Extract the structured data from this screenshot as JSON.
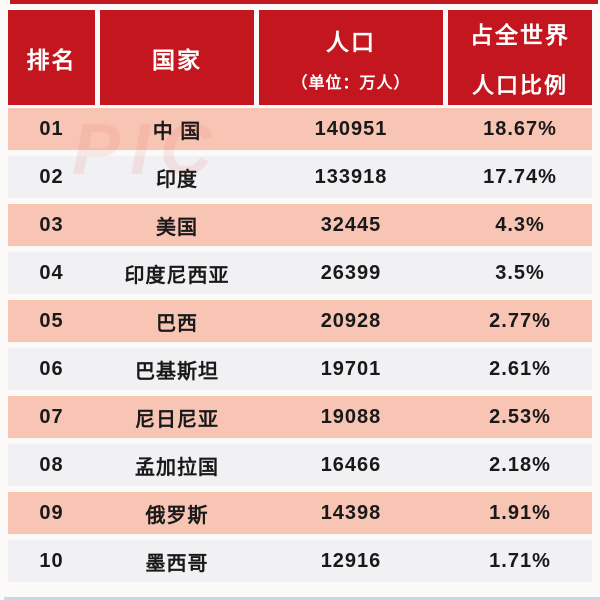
{
  "colors": {
    "page_bg": "#fbfaf8",
    "header_bg": "#c4161e",
    "header_text": "#ffffff",
    "row_pink": "#f8c5b5",
    "row_gray": "#f1f0f3",
    "body_text": "#191919",
    "bottom_line": "#b9d0e4"
  },
  "watermark": {
    "text": "PIC"
  },
  "table": {
    "columns": [
      {
        "key": "rank",
        "label": "排名",
        "sublabel": ""
      },
      {
        "key": "country",
        "label": "国家",
        "sublabel": ""
      },
      {
        "key": "population",
        "label": "人口",
        "sublabel": "（单位：万人）"
      },
      {
        "key": "share",
        "label": "占全世界",
        "sublabel": "人口比例"
      }
    ],
    "rows": [
      {
        "rank": "01",
        "country": "中 国",
        "population": "140951",
        "share": "18.67%"
      },
      {
        "rank": "02",
        "country": "印度",
        "population": "133918",
        "share": "17.74%"
      },
      {
        "rank": "03",
        "country": "美国",
        "population": "32445",
        "share": "4.3%"
      },
      {
        "rank": "04",
        "country": "印度尼西亚",
        "population": "26399",
        "share": "3.5%"
      },
      {
        "rank": "05",
        "country": "巴西",
        "population": "20928",
        "share": "2.77%"
      },
      {
        "rank": "06",
        "country": "巴基斯坦",
        "population": "19701",
        "share": "2.61%"
      },
      {
        "rank": "07",
        "country": "尼日尼亚",
        "population": "19088",
        "share": "2.53%"
      },
      {
        "rank": "08",
        "country": "孟加拉国",
        "population": "16466",
        "share": "2.18%"
      },
      {
        "rank": "09",
        "country": "俄罗斯",
        "population": "14398",
        "share": "1.91%"
      },
      {
        "rank": "10",
        "country": "墨西哥",
        "population": "12916",
        "share": "1.71%"
      }
    ]
  },
  "chart_data": {
    "type": "table",
    "title": "",
    "columns": [
      "排名",
      "国家",
      "人口（单位：万人）",
      "占全世界人口比例"
    ],
    "rows": [
      [
        "01",
        "中 国",
        140951,
        "18.67%"
      ],
      [
        "02",
        "印度",
        133918,
        "17.74%"
      ],
      [
        "03",
        "美国",
        32445,
        "4.3%"
      ],
      [
        "04",
        "印度尼西亚",
        26399,
        "3.5%"
      ],
      [
        "05",
        "巴西",
        20928,
        "2.77%"
      ],
      [
        "06",
        "巴基斯坦",
        19701,
        "2.61%"
      ],
      [
        "07",
        "尼日尼亚",
        19088,
        "2.53%"
      ],
      [
        "08",
        "孟加拉国",
        16466,
        "2.18%"
      ],
      [
        "09",
        "俄罗斯",
        14398,
        "1.91%"
      ],
      [
        "10",
        "墨西哥",
        12916,
        "1.71%"
      ]
    ]
  }
}
